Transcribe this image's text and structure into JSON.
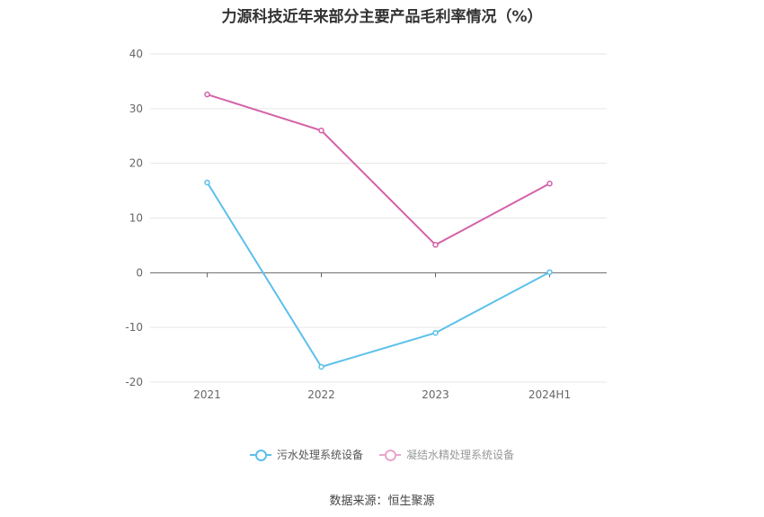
{
  "chart_data": {
    "type": "line",
    "title": "力源科技近年来部分主要产品毛利率情况（%）",
    "categories": [
      "2021",
      "2022",
      "2023",
      "2024H1"
    ],
    "series": [
      {
        "name": "污水处理系统设备",
        "values": [
          16.5,
          -17.2,
          -11.0,
          0.1
        ],
        "color": "#5bc0eb"
      },
      {
        "name": "凝结水精处理系统设备",
        "values": [
          32.6,
          26.0,
          5.1,
          16.3
        ],
        "color": "#d462a8"
      }
    ],
    "ylim": [
      -20,
      40
    ],
    "yticks": [
      "-20",
      "-10",
      "0",
      "10",
      "20",
      "30",
      "40"
    ],
    "grid": true,
    "legend_position": "bottom"
  },
  "source_text": "数据来源：恒生聚源"
}
